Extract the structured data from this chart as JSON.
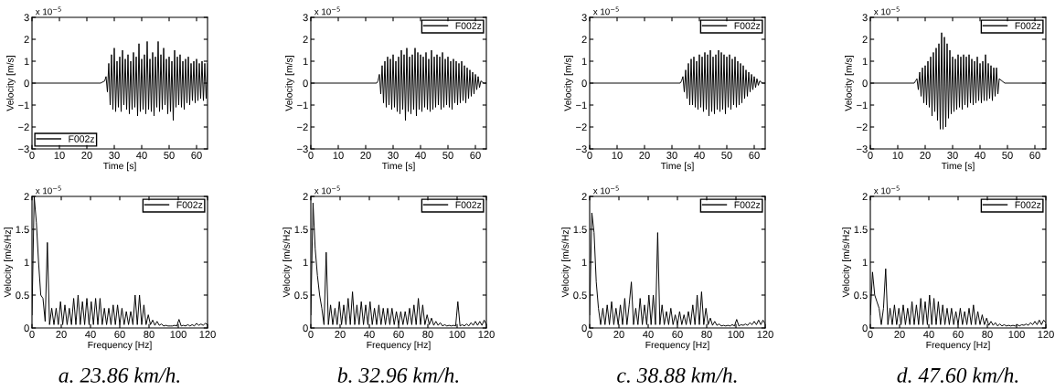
{
  "chart_data": [
    {
      "type": "line",
      "xlabel": "Time [s]",
      "ylabel": "Velocity [m/s]",
      "xlim": [
        0,
        64
      ],
      "xticks": [
        0,
        10,
        20,
        30,
        40,
        50,
        60
      ],
      "ylim": [
        -3,
        3
      ],
      "yticks": [
        -3,
        -2,
        -1,
        0,
        1,
        2,
        3
      ],
      "grid": false,
      "legend": "bottom left",
      "annotations": [
        "x 10$^{−5}$"
      ],
      "series": [
        {
          "name": "F002z",
          "color": "#000000",
          "x": [
            0,
            25,
            26.5,
            27,
            27.5,
            28,
            28.5,
            29,
            29.5,
            30,
            30.5,
            31,
            31.5,
            32,
            32.5,
            33,
            33.5,
            34,
            34.5,
            35,
            35.5,
            36,
            36.5,
            37,
            37.5,
            38,
            38.5,
            39,
            39.5,
            40,
            40.5,
            41,
            41.5,
            42,
            42.5,
            43,
            43.5,
            44,
            44.5,
            45,
            45.5,
            46,
            46.5,
            47,
            47.5,
            48,
            48.5,
            49,
            49.5,
            50,
            50.5,
            51,
            51.5,
            52,
            52.5,
            53,
            53.5,
            54,
            54.5,
            55,
            55.5,
            56,
            56.5,
            57,
            57.5,
            58,
            58.5,
            59,
            59.5,
            60,
            60.5,
            61,
            61.5,
            62,
            62.5,
            63,
            63.5,
            64
          ],
          "values": [
            0,
            0,
            0.1,
            0.3,
            -0.4,
            0.9,
            -1.0,
            1.3,
            -1.2,
            1.6,
            -1.3,
            1.0,
            -1.1,
            1.2,
            -1.3,
            1.5,
            -1.0,
            1.1,
            -1.2,
            1.3,
            -1.4,
            1.0,
            -1.2,
            1.4,
            -1.1,
            1.2,
            -1.5,
            1.8,
            -1.3,
            1.1,
            -1.2,
            1.3,
            -1.4,
            1.9,
            -1.2,
            1.1,
            -1.3,
            1.4,
            -1.5,
            1.2,
            -1.1,
            1.9,
            -1.3,
            1.3,
            -1.2,
            1.6,
            -1.0,
            1.1,
            -1.4,
            1.2,
            -1.3,
            1.0,
            -1.7,
            1.5,
            -1.1,
            1.2,
            -1.0,
            1.3,
            -1.1,
            1.0,
            -1.2,
            1.1,
            -0.9,
            1.2,
            -1.0,
            0.9,
            -0.8,
            1.0,
            -0.9,
            1.1,
            -0.8,
            0.9,
            -0.7,
            1.0,
            -0.8,
            0.9,
            -0.7,
            0.9
          ]
        }
      ]
    },
    {
      "type": "line",
      "xlabel": "Time [s]",
      "ylabel": "Velocity [m/s]",
      "xlim": [
        0,
        64
      ],
      "xticks": [
        0,
        10,
        20,
        30,
        40,
        50,
        60
      ],
      "ylim": [
        -3,
        3
      ],
      "yticks": [
        -3,
        -2,
        -1,
        0,
        1,
        2,
        3
      ],
      "grid": false,
      "legend": "top right",
      "annotations": [
        "x 10$^{−5}$"
      ],
      "series": [
        {
          "name": "F002z",
          "color": "#000000",
          "x": [
            0,
            24,
            24.5,
            25,
            25.5,
            26,
            26.5,
            27,
            27.5,
            28,
            28.5,
            29,
            29.5,
            30,
            30.5,
            31,
            31.5,
            32,
            32.5,
            33,
            33.5,
            34,
            34.5,
            35,
            35.5,
            36,
            36.5,
            37,
            37.5,
            38,
            38.5,
            39,
            39.5,
            40,
            40.5,
            41,
            41.5,
            42,
            42.5,
            43,
            43.5,
            44,
            44.5,
            45,
            45.5,
            46,
            46.5,
            47,
            47.5,
            48,
            48.5,
            49,
            49.5,
            50,
            50.5,
            51,
            51.5,
            52,
            52.5,
            53,
            53.5,
            54,
            54.5,
            55,
            55.5,
            56,
            56.5,
            57,
            57.5,
            58,
            58.5,
            59,
            59.5,
            60,
            60.5,
            61,
            61.5,
            62,
            63,
            64
          ],
          "values": [
            0,
            0,
            0.1,
            0.4,
            -0.5,
            0.8,
            -0.9,
            1.0,
            -1.1,
            1.2,
            -1.0,
            1.1,
            -1.2,
            1.3,
            -1.1,
            1.0,
            -1.3,
            1.2,
            -1.4,
            1.5,
            -1.2,
            1.3,
            -1.7,
            1.6,
            -1.3,
            1.2,
            -1.4,
            1.3,
            -1.2,
            1.6,
            -1.5,
            1.4,
            -1.2,
            1.3,
            -1.3,
            1.2,
            -1.1,
            1.4,
            -1.2,
            1.1,
            -1.3,
            1.5,
            -1.2,
            1.2,
            -1.1,
            1.3,
            -1.0,
            1.2,
            -1.2,
            1.4,
            -1.1,
            1.1,
            -1.0,
            1.2,
            -1.1,
            1.0,
            -1.2,
            1.1,
            -0.9,
            1.0,
            -1.0,
            0.9,
            -0.9,
            1.0,
            -0.8,
            0.8,
            -0.9,
            0.7,
            -0.7,
            0.6,
            -0.6,
            0.5,
            -0.5,
            0.4,
            -0.3,
            0.3,
            -0.2,
            0.1,
            0,
            0
          ]
        }
      ]
    },
    {
      "type": "line",
      "xlabel": "Time [s]",
      "ylabel": "Velocity [m/s]",
      "xlim": [
        0,
        64
      ],
      "xticks": [
        0,
        10,
        20,
        30,
        40,
        50,
        60
      ],
      "ylim": [
        -3,
        3
      ],
      "yticks": [
        -3,
        -2,
        -1,
        0,
        1,
        2,
        3
      ],
      "grid": false,
      "legend": "top right",
      "annotations": [
        "x 10$^{−5}$"
      ],
      "series": [
        {
          "name": "F002z",
          "color": "#000000",
          "x": [
            0,
            33,
            33.5,
            34,
            34.5,
            35,
            35.5,
            36,
            36.5,
            37,
            37.5,
            38,
            38.5,
            39,
            39.5,
            40,
            40.5,
            41,
            41.5,
            42,
            42.5,
            43,
            43.5,
            44,
            44.5,
            45,
            45.5,
            46,
            46.5,
            47,
            47.5,
            48,
            48.5,
            49,
            49.5,
            50,
            50.5,
            51,
            51.5,
            52,
            52.5,
            53,
            53.5,
            54,
            54.5,
            55,
            55.5,
            56,
            56.5,
            57,
            57.5,
            58,
            58.5,
            59,
            59.5,
            60,
            60.5,
            61,
            61.5,
            62,
            63,
            64
          ],
          "values": [
            0,
            0,
            0.1,
            0.3,
            -0.4,
            0.6,
            -0.7,
            0.9,
            -1.0,
            1.1,
            -1.0,
            1.2,
            -1.1,
            1.0,
            -1.2,
            1.3,
            -1.1,
            1.2,
            -1.3,
            1.4,
            -1.2,
            1.3,
            -1.5,
            1.5,
            -1.3,
            1.2,
            -1.4,
            1.3,
            -1.2,
            1.5,
            -1.3,
            1.4,
            -1.2,
            1.3,
            -1.4,
            1.2,
            -1.1,
            1.3,
            -1.2,
            1.1,
            -1.0,
            1.2,
            -1.1,
            1.0,
            -1.0,
            0.9,
            -0.9,
            0.8,
            -0.7,
            0.6,
            -0.6,
            0.5,
            -0.4,
            0.4,
            -0.3,
            0.3,
            -0.2,
            0.2,
            -0.1,
            0.1,
            0,
            0
          ]
        }
      ]
    },
    {
      "type": "line",
      "xlabel": "Time [s]",
      "ylabel": "Velocity [m/s]",
      "xlim": [
        0,
        64
      ],
      "xticks": [
        0,
        10,
        20,
        30,
        40,
        50,
        60
      ],
      "ylim": [
        -3,
        3
      ],
      "yticks": [
        -3,
        -2,
        -1,
        0,
        1,
        2,
        3
      ],
      "grid": false,
      "legend": "top right",
      "annotations": [
        "x 10$^{−5}$"
      ],
      "series": [
        {
          "name": "F002z",
          "color": "#000000",
          "x": [
            0,
            16,
            16.5,
            17,
            17.5,
            18,
            18.5,
            19,
            19.5,
            20,
            20.5,
            21,
            21.5,
            22,
            22.5,
            23,
            23.5,
            24,
            24.5,
            25,
            25.5,
            26,
            26.5,
            27,
            27.5,
            28,
            28.5,
            29,
            29.5,
            30,
            30.5,
            31,
            31.5,
            32,
            32.5,
            33,
            33.5,
            34,
            34.5,
            35,
            35.5,
            36,
            36.5,
            37,
            37.5,
            38,
            38.5,
            39,
            39.5,
            40,
            40.5,
            41,
            41.5,
            42,
            42.5,
            43,
            43.5,
            44,
            44.5,
            45,
            45.5,
            46,
            46.5,
            47,
            48,
            49,
            64
          ],
          "values": [
            0,
            0,
            0.1,
            0.2,
            -0.3,
            0.5,
            -0.6,
            0.7,
            -0.9,
            0.8,
            -1.0,
            1.0,
            -1.1,
            1.2,
            -1.5,
            1.4,
            -1.3,
            1.6,
            -1.7,
            1.8,
            -2.1,
            2.3,
            -2.1,
            2.1,
            -2.0,
            1.8,
            -1.6,
            1.5,
            -1.4,
            1.2,
            -1.3,
            1.1,
            -1.2,
            1.3,
            -1.1,
            1.2,
            -1.2,
            1.3,
            -1.0,
            1.2,
            -1.1,
            1.3,
            -0.9,
            1.1,
            -1.0,
            1.0,
            -0.9,
            1.2,
            -0.8,
            0.9,
            -0.9,
            1.0,
            -0.8,
            1.3,
            -0.8,
            0.9,
            -0.7,
            0.8,
            -0.8,
            0.7,
            -0.6,
            0.7,
            -0.5,
            0.2,
            0.1,
            0,
            0
          ]
        }
      ]
    },
    {
      "type": "line",
      "xlabel": "Frequency [Hz]",
      "ylabel": "Velocity [m/s/Hz]",
      "xlim": [
        0,
        120
      ],
      "xticks": [
        0,
        20,
        40,
        60,
        80,
        100,
        120
      ],
      "ylim": [
        0,
        2
      ],
      "yticks": [
        0,
        0.5,
        1,
        1.5,
        2
      ],
      "grid": false,
      "legend": "top right",
      "annotations": [
        "x 10$^{−5}$",
        "a. 23.86 km/h."
      ],
      "series": [
        {
          "name": "F002z",
          "color": "#000000",
          "x": [
            0,
            1.5,
            3,
            4.5,
            6,
            7.5,
            9,
            10.5,
            12,
            13.5,
            15,
            16.5,
            18,
            19.5,
            21,
            22.5,
            24,
            25.5,
            27,
            28.5,
            30,
            31.5,
            33,
            34.5,
            36,
            37.5,
            39,
            40.5,
            42,
            43.5,
            45,
            46.5,
            48,
            49.5,
            51,
            52.5,
            54,
            55.5,
            57,
            58.5,
            60,
            61.5,
            63,
            64.5,
            66,
            67.5,
            69,
            70.5,
            72,
            73.5,
            75,
            76.5,
            78,
            79.5,
            81,
            82.5,
            84,
            85.5,
            87,
            88.5,
            90,
            91.5,
            93,
            94.5,
            96,
            97.5,
            99,
            100.5,
            102,
            103.5,
            105,
            106.5,
            108,
            109.5,
            111,
            112.5,
            114,
            115.5,
            117,
            118.5,
            120
          ],
          "values": [
            0.2,
            2.0,
            1.6,
            1.0,
            0.5,
            0.45,
            0.1,
            1.3,
            0.05,
            0.3,
            0.05,
            0.3,
            0.05,
            0.4,
            0.05,
            0.35,
            0.05,
            0.3,
            0.05,
            0.45,
            0.05,
            0.5,
            0.05,
            0.4,
            0.05,
            0.45,
            0.05,
            0.4,
            0.05,
            0.45,
            0.05,
            0.45,
            0.05,
            0.3,
            0.05,
            0.3,
            0.05,
            0.35,
            0.05,
            0.35,
            0.05,
            0.3,
            0.05,
            0.25,
            0.05,
            0.25,
            0.05,
            0.5,
            0.05,
            0.5,
            0.05,
            0.35,
            0.05,
            0.2,
            0.05,
            0.12,
            0.04,
            0.1,
            0.04,
            0.06,
            0.03,
            0.04,
            0.03,
            0.03,
            0.03,
            0.04,
            0.03,
            0.13,
            0.03,
            0.04,
            0.03,
            0.05,
            0.03,
            0.05,
            0.03,
            0.07,
            0.04,
            0.06,
            0.04,
            0.07,
            0.05
          ]
        }
      ]
    },
    {
      "type": "line",
      "xlabel": "Frequency [Hz]",
      "ylabel": "Velocity [m/s/Hz]",
      "xlim": [
        0,
        120
      ],
      "xticks": [
        0,
        20,
        40,
        60,
        80,
        100,
        120
      ],
      "ylim": [
        0,
        2
      ],
      "yticks": [
        0,
        0.5,
        1,
        1.5,
        2
      ],
      "grid": false,
      "legend": "top right",
      "annotations": [
        "x 10$^{−5}$",
        "b. 32.96 km/h."
      ],
      "series": [
        {
          "name": "F002z",
          "color": "#000000",
          "x": [
            0,
            1.5,
            3,
            4.5,
            6,
            7.5,
            9,
            10.5,
            12,
            13.5,
            15,
            16.5,
            18,
            19.5,
            21,
            22.5,
            24,
            25.5,
            27,
            28.5,
            30,
            31.5,
            33,
            34.5,
            36,
            37.5,
            39,
            40.5,
            42,
            43.5,
            45,
            46.5,
            48,
            49.5,
            51,
            52.5,
            54,
            55.5,
            57,
            58.5,
            60,
            61.5,
            63,
            64.5,
            66,
            67.5,
            69,
            70.5,
            72,
            73.5,
            75,
            76.5,
            78,
            79.5,
            81,
            82.5,
            84,
            85.5,
            87,
            88.5,
            90,
            91.5,
            93,
            94.5,
            96,
            97.5,
            99,
            100.5,
            102,
            103.5,
            105,
            106.5,
            108,
            109.5,
            111,
            112.5,
            114,
            115.5,
            117,
            118.5,
            120
          ],
          "values": [
            0.2,
            1.9,
            1.2,
            0.8,
            0.5,
            0.3,
            0.05,
            1.15,
            0.05,
            0.35,
            0.05,
            0.3,
            0.05,
            0.4,
            0.05,
            0.35,
            0.05,
            0.45,
            0.05,
            0.55,
            0.05,
            0.35,
            0.05,
            0.4,
            0.05,
            0.35,
            0.05,
            0.4,
            0.05,
            0.3,
            0.05,
            0.35,
            0.05,
            0.3,
            0.05,
            0.3,
            0.05,
            0.3,
            0.05,
            0.25,
            0.05,
            0.25,
            0.05,
            0.25,
            0.05,
            0.3,
            0.05,
            0.35,
            0.05,
            0.45,
            0.05,
            0.35,
            0.05,
            0.2,
            0.05,
            0.15,
            0.04,
            0.1,
            0.04,
            0.08,
            0.03,
            0.05,
            0.03,
            0.04,
            0.03,
            0.04,
            0.03,
            0.4,
            0.03,
            0.05,
            0.03,
            0.06,
            0.03,
            0.08,
            0.04,
            0.1,
            0.04,
            0.1,
            0.04,
            0.12,
            0.05
          ]
        }
      ]
    },
    {
      "type": "line",
      "xlabel": "Frequency [Hz]",
      "ylabel": "Velocity [m/s/Hz]",
      "xlim": [
        0,
        120
      ],
      "xticks": [
        0,
        20,
        40,
        60,
        80,
        100,
        120
      ],
      "ylim": [
        0,
        2
      ],
      "yticks": [
        0,
        0.5,
        1,
        1.5,
        2
      ],
      "grid": false,
      "legend": "top right",
      "annotations": [
        "x 10$^{−5}$",
        "c. 38.88 km/h."
      ],
      "series": [
        {
          "name": "F002z",
          "color": "#000000",
          "x": [
            0,
            1.5,
            3,
            4.5,
            6,
            7.5,
            9,
            10.5,
            12,
            13.5,
            15,
            16.5,
            18,
            19.5,
            21,
            22.5,
            24,
            25.5,
            27,
            28.5,
            30,
            31.5,
            33,
            34.5,
            36,
            37.5,
            39,
            40.5,
            42,
            43.5,
            45,
            46.5,
            48,
            49.5,
            51,
            52.5,
            54,
            55.5,
            57,
            58.5,
            60,
            61.5,
            63,
            64.5,
            66,
            67.5,
            69,
            70.5,
            72,
            73.5,
            75,
            76.5,
            78,
            79.5,
            81,
            82.5,
            84,
            85.5,
            87,
            88.5,
            90,
            91.5,
            93,
            94.5,
            96,
            97.5,
            99,
            100.5,
            102,
            103.5,
            105,
            106.5,
            108,
            109.5,
            111,
            112.5,
            114,
            115.5,
            117,
            118.5,
            120
          ],
          "values": [
            0.2,
            1.75,
            1.45,
            0.7,
            0.3,
            0.05,
            0.3,
            0.05,
            0.35,
            0.05,
            0.4,
            0.05,
            0.3,
            0.05,
            0.35,
            0.05,
            0.45,
            0.05,
            0.35,
            0.7,
            0.05,
            0.3,
            0.05,
            0.45,
            0.05,
            0.35,
            0.05,
            0.5,
            0.05,
            0.5,
            0.05,
            1.45,
            0.05,
            0.35,
            0.05,
            0.25,
            0.05,
            0.3,
            0.05,
            0.2,
            0.05,
            0.25,
            0.05,
            0.2,
            0.05,
            0.25,
            0.05,
            0.35,
            0.05,
            0.5,
            0.05,
            0.55,
            0.05,
            0.3,
            0.05,
            0.15,
            0.04,
            0.1,
            0.04,
            0.06,
            0.03,
            0.04,
            0.03,
            0.04,
            0.03,
            0.05,
            0.03,
            0.13,
            0.03,
            0.05,
            0.04,
            0.06,
            0.04,
            0.08,
            0.05,
            0.1,
            0.05,
            0.12,
            0.05,
            0.12,
            0.06
          ]
        }
      ]
    },
    {
      "type": "line",
      "xlabel": "Frequency [Hz]",
      "ylabel": "Velocity [m/s/Hz]",
      "xlim": [
        0,
        120
      ],
      "xticks": [
        0,
        20,
        40,
        60,
        80,
        100,
        120
      ],
      "ylim": [
        0,
        2
      ],
      "yticks": [
        0,
        0.5,
        1,
        1.5,
        2
      ],
      "grid": false,
      "legend": "top right",
      "annotations": [
        "x 10$^{−5}$",
        "d. 47.60 km/h."
      ],
      "series": [
        {
          "name": "F002z",
          "color": "#000000",
          "x": [
            0,
            1.5,
            3,
            4.5,
            6,
            7.5,
            9,
            10.5,
            12,
            13.5,
            15,
            16.5,
            18,
            19.5,
            21,
            22.5,
            24,
            25.5,
            27,
            28.5,
            30,
            31.5,
            33,
            34.5,
            36,
            37.5,
            39,
            40.5,
            42,
            43.5,
            45,
            46.5,
            48,
            49.5,
            51,
            52.5,
            54,
            55.5,
            57,
            58.5,
            60,
            61.5,
            63,
            64.5,
            66,
            67.5,
            69,
            70.5,
            72,
            73.5,
            75,
            76.5,
            78,
            79.5,
            81,
            82.5,
            84,
            85.5,
            87,
            88.5,
            90,
            91.5,
            93,
            94.5,
            96,
            97.5,
            99,
            100.5,
            102,
            103.5,
            105,
            106.5,
            108,
            109.5,
            111,
            112.5,
            114,
            115.5,
            117,
            118.5,
            120
          ],
          "values": [
            0.2,
            0.85,
            0.5,
            0.4,
            0.3,
            0.05,
            0.3,
            0.9,
            0.05,
            0.3,
            0.05,
            0.35,
            0.05,
            0.3,
            0.05,
            0.35,
            0.05,
            0.3,
            0.05,
            0.4,
            0.05,
            0.35,
            0.05,
            0.45,
            0.05,
            0.4,
            0.05,
            0.5,
            0.05,
            0.45,
            0.05,
            0.4,
            0.05,
            0.35,
            0.05,
            0.3,
            0.05,
            0.3,
            0.05,
            0.25,
            0.05,
            0.3,
            0.05,
            0.25,
            0.05,
            0.3,
            0.05,
            0.35,
            0.05,
            0.25,
            0.05,
            0.2,
            0.05,
            0.15,
            0.04,
            0.1,
            0.04,
            0.08,
            0.03,
            0.06,
            0.03,
            0.05,
            0.03,
            0.04,
            0.03,
            0.04,
            0.03,
            0.05,
            0.03,
            0.05,
            0.04,
            0.06,
            0.04,
            0.08,
            0.05,
            0.1,
            0.05,
            0.12,
            0.05,
            0.12,
            0.08
          ]
        }
      ]
    }
  ]
}
